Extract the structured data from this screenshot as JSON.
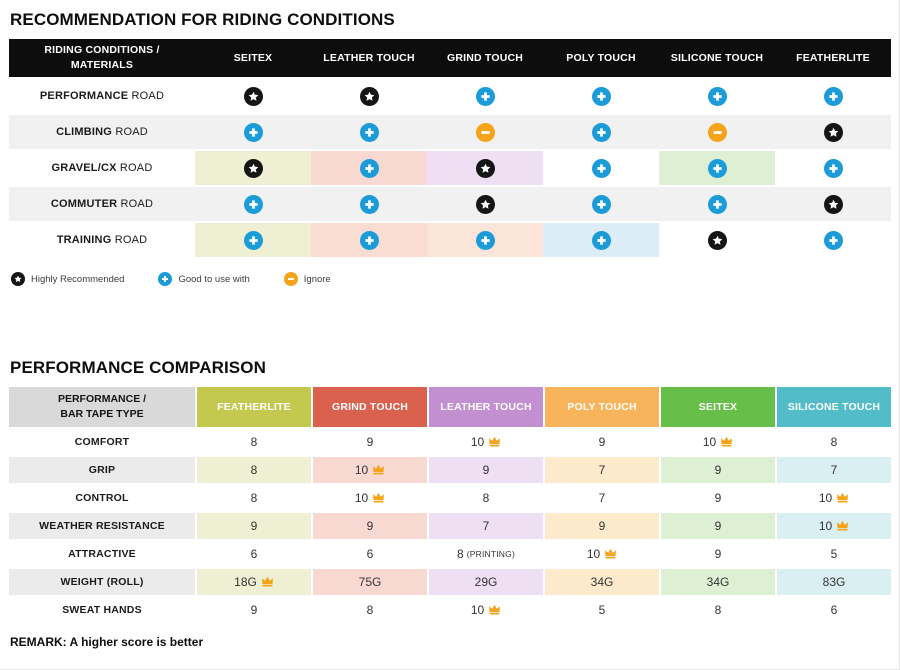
{
  "colors": {
    "page_bg": "#ffffff",
    "header_black": "#0d0d0d",
    "striped_row_gray": "#f1f1f1",
    "label_gray": "#ebebeb",
    "header_gray": "#d9d9d9",
    "crown_orange": "#f5a31a"
  },
  "icons": {
    "star": {
      "meaning": "Highly Recommended",
      "color": "#151515"
    },
    "plus": {
      "meaning": "Good to use with",
      "color": "#1b9cd9"
    },
    "minus": {
      "meaning": "Ignore",
      "color": "#f5a31a"
    }
  },
  "riding_table": {
    "title": "RECOMMENDATION FOR RIDING CONDITIONS",
    "header_first": [
      "RIDING CONDITIONS /",
      "MATERIALS"
    ],
    "columns": [
      "SEITEX",
      "LEATHER TOUCH",
      "GRIND TOUCH",
      "POLY TOUCH",
      "SILICONE TOUCH",
      "FEATHERLITE"
    ],
    "rows": [
      {
        "label_bold": "PERFORMANCE",
        "label_rest": "ROAD",
        "label_bg": "#ffffff",
        "cells": [
          {
            "icon": "star",
            "bg": "#ffffff"
          },
          {
            "icon": "star",
            "bg": "#ffffff"
          },
          {
            "icon": "plus",
            "bg": "#ffffff"
          },
          {
            "icon": "plus",
            "bg": "#ffffff"
          },
          {
            "icon": "plus",
            "bg": "#ffffff"
          },
          {
            "icon": "plus",
            "bg": "#ffffff"
          }
        ]
      },
      {
        "label_bold": "CLIMBING",
        "label_rest": "ROAD",
        "label_bg": "#f1f1f1",
        "cells": [
          {
            "icon": "plus",
            "bg": "#f1f1f1"
          },
          {
            "icon": "plus",
            "bg": "#f1f1f1"
          },
          {
            "icon": "minus",
            "bg": "#f1f1f1"
          },
          {
            "icon": "plus",
            "bg": "#f1f1f1"
          },
          {
            "icon": "minus",
            "bg": "#f1f1f1"
          },
          {
            "icon": "star",
            "bg": "#f1f1f1"
          }
        ]
      },
      {
        "label_bold": "GRAVEL/CX",
        "label_rest": "ROAD",
        "label_bg": "#ffffff",
        "cells": [
          {
            "icon": "star",
            "bg": "#eff0d3"
          },
          {
            "icon": "plus",
            "bg": "#f8d9d2"
          },
          {
            "icon": "star",
            "bg": "#eedff3"
          },
          {
            "icon": "plus",
            "bg": "#ffffff"
          },
          {
            "icon": "plus",
            "bg": "#def0d4"
          },
          {
            "icon": "plus",
            "bg": "#ffffff"
          }
        ]
      },
      {
        "label_bold": "COMMUTER",
        "label_rest": "ROAD",
        "label_bg": "#f1f1f1",
        "cells": [
          {
            "icon": "plus",
            "bg": "#f1f1f1"
          },
          {
            "icon": "plus",
            "bg": "#f1f1f1"
          },
          {
            "icon": "star",
            "bg": "#f1f1f1"
          },
          {
            "icon": "plus",
            "bg": "#f1f1f1"
          },
          {
            "icon": "plus",
            "bg": "#f1f1f1"
          },
          {
            "icon": "star",
            "bg": "#f1f1f1"
          }
        ]
      },
      {
        "label_bold": "TRAINING",
        "label_rest": "ROAD",
        "label_bg": "#ffffff",
        "cells": [
          {
            "icon": "plus",
            "bg": "#eff0d3"
          },
          {
            "icon": "plus",
            "bg": "#f9ddd3"
          },
          {
            "icon": "plus",
            "bg": "#fbe4d9"
          },
          {
            "icon": "plus",
            "bg": "#dcedf7"
          },
          {
            "icon": "star",
            "bg": "#ffffff"
          },
          {
            "icon": "plus",
            "bg": "#ffffff"
          }
        ]
      }
    ],
    "legend": [
      {
        "icon": "star",
        "label": "Highly Recommended"
      },
      {
        "icon": "plus",
        "label": "Good to use with"
      },
      {
        "icon": "minus",
        "label": "Ignore"
      }
    ]
  },
  "performance_table": {
    "title": "PERFORMANCE COMPARISON",
    "header_first": [
      "PERFORMANCE /",
      "BAR TAPE TYPE"
    ],
    "columns": [
      {
        "label": "FEATHERLITE",
        "color": "#c3c94f",
        "tint": "#eff0d3"
      },
      {
        "label": "GRIND TOUCH",
        "color": "#d9614e",
        "tint": "#f8d9d2"
      },
      {
        "label": "LEATHER TOUCH",
        "color": "#c28fd0",
        "tint": "#eedff3"
      },
      {
        "label": "POLY TOUCH",
        "color": "#f7b45a",
        "tint": "#fdeacd"
      },
      {
        "label": "SEITEX",
        "color": "#67bf4a",
        "tint": "#def0d4"
      },
      {
        "label": "SILICONE TOUCH",
        "color": "#52bcc8",
        "tint": "#d9eff1"
      }
    ],
    "rows": [
      {
        "label": "COMFORT",
        "tinted": false,
        "cells": [
          {
            "value": "8"
          },
          {
            "value": "9"
          },
          {
            "value": "10",
            "crown": true
          },
          {
            "value": "9"
          },
          {
            "value": "10",
            "crown": true
          },
          {
            "value": "8"
          }
        ]
      },
      {
        "label": "GRIP",
        "tinted": true,
        "cells": [
          {
            "value": "8"
          },
          {
            "value": "10",
            "crown": true
          },
          {
            "value": "9"
          },
          {
            "value": "7"
          },
          {
            "value": "9"
          },
          {
            "value": "7"
          }
        ]
      },
      {
        "label": "CONTROL",
        "tinted": false,
        "cells": [
          {
            "value": "8"
          },
          {
            "value": "10",
            "crown": true
          },
          {
            "value": "8"
          },
          {
            "value": "7"
          },
          {
            "value": "9"
          },
          {
            "value": "10",
            "crown": true
          }
        ]
      },
      {
        "label": "WEATHER RESISTANCE",
        "tinted": true,
        "cells": [
          {
            "value": "9"
          },
          {
            "value": "9"
          },
          {
            "value": "7"
          },
          {
            "value": "9"
          },
          {
            "value": "9"
          },
          {
            "value": "10",
            "crown": true
          }
        ]
      },
      {
        "label": "ATTRACTIVE",
        "tinted": false,
        "cells": [
          {
            "value": "6"
          },
          {
            "value": "6"
          },
          {
            "value": "8",
            "note": "(PRINTING)"
          },
          {
            "value": "10",
            "crown": true
          },
          {
            "value": "9"
          },
          {
            "value": "5"
          }
        ]
      },
      {
        "label": "WEIGHT (ROLL)",
        "tinted": true,
        "cells": [
          {
            "value": "18G",
            "crown": true
          },
          {
            "value": "75G"
          },
          {
            "value": "29G"
          },
          {
            "value": "34G"
          },
          {
            "value": "34G"
          },
          {
            "value": "83G"
          }
        ]
      },
      {
        "label": "SWEAT HANDS",
        "tinted": false,
        "cells": [
          {
            "value": "9"
          },
          {
            "value": "8"
          },
          {
            "value": "10",
            "crown": true
          },
          {
            "value": "5"
          },
          {
            "value": "8"
          },
          {
            "value": "6"
          }
        ]
      }
    ],
    "remark": "REMARK: A higher score is better"
  }
}
